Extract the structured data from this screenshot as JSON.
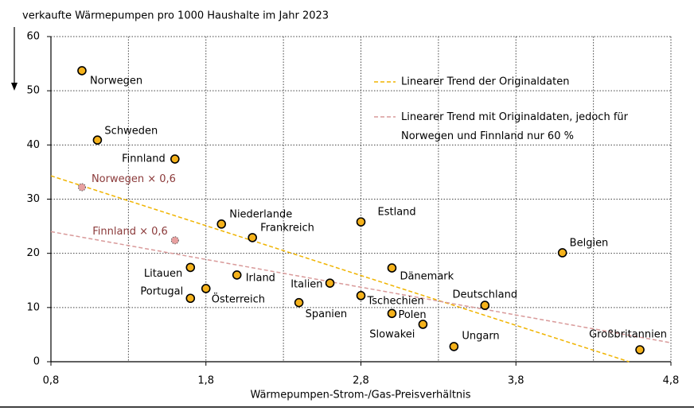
{
  "chart_data": {
    "type": "scatter",
    "title": "verkaufte Wärmepumpen pro 1000 Haushalte im Jahr 2023",
    "x_label": "Wärmepumpen-Strom-/Gas-Preisverhältnis",
    "labels": [
      "Norwegen",
      "Schweden",
      "Finnland",
      "Niederlande",
      "Frankreich",
      "Estland",
      "Litauen",
      "Irland",
      "Portugal",
      "Österreich",
      "Italien",
      "Spanien",
      "Dänemark",
      "Tschechien",
      "Polen",
      "Slowakei",
      "Ungarn",
      "Deutschland",
      "Belgien",
      "Großbritannien"
    ],
    "x": [
      1.0,
      1.1,
      1.6,
      1.9,
      2.1,
      2.8,
      1.7,
      2.0,
      1.7,
      1.8,
      2.6,
      2.4,
      3.0,
      2.8,
      3.0,
      3.2,
      3.4,
      3.6,
      4.1,
      4.6
    ],
    "values": [
      53.7,
      40.9,
      37.4,
      25.4,
      22.9,
      25.8,
      17.4,
      16.0,
      11.7,
      13.5,
      14.5,
      10.9,
      17.3,
      12.2,
      8.9,
      6.9,
      2.8,
      10.4,
      20.1,
      2.2
    ],
    "color": "#f5b21b",
    "scaled": {
      "labels": [
        "Norwegen × 0,6",
        "Finnland × 0,6"
      ],
      "x": [
        1.0,
        1.6
      ],
      "values": [
        32.2,
        22.4
      ],
      "color": "#e8a0a0",
      "label_color": "#8b3a3a"
    },
    "trends": [
      {
        "name": "Linearer Trend der Originaldaten",
        "color": "#f0b400",
        "x": [
          0.8,
          4.53
        ],
        "values": [
          34.3,
          0
        ]
      },
      {
        "name": "Linearer Trend mit Originaldaten, jedoch für Norwegen und Finnland nur 60 %",
        "color": "#d99a9a",
        "x": [
          0.8,
          4.8
        ],
        "values": [
          24.0,
          3.5
        ]
      }
    ],
    "xlim": [
      0.8,
      4.8
    ],
    "xticks": [
      {
        "value": 0.8,
        "label": "0,8"
      },
      {
        "value": 1.8,
        "label": "1,8"
      },
      {
        "value": 2.8,
        "label": "2,8"
      },
      {
        "value": 3.8,
        "label": "3,8"
      },
      {
        "value": 4.8,
        "label": "4,8"
      }
    ],
    "ylim": [
      0,
      60
    ],
    "yticks": [
      0,
      10,
      20,
      30,
      40,
      50,
      60
    ],
    "grid": true
  }
}
